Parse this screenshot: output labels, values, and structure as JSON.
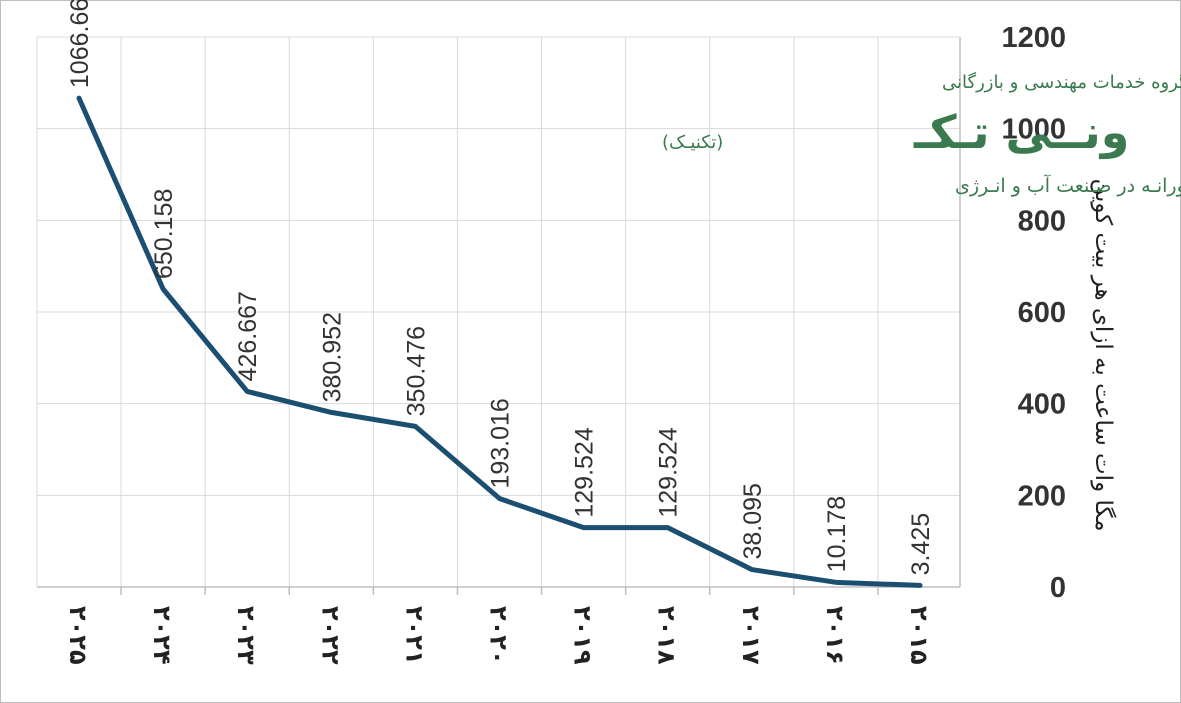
{
  "chart_data": {
    "type": "line",
    "categories": [
      "۲۰۲۵",
      "۲۰۲۴",
      "۲۰۲۳",
      "۲۰۲۲",
      "۲۰۲۱",
      "۲۰۲۰",
      "۲۰۱۹",
      "۲۰۱۸",
      "۲۰۱۷",
      "۲۰۱۶",
      "۲۰۱۵"
    ],
    "values": [
      1066.66,
      650.158,
      426.667,
      380.952,
      350.476,
      193.016,
      129.524,
      129.524,
      38.095,
      10.178,
      3.425
    ],
    "value_labels": [
      "1066.66",
      "650.158",
      "426.667",
      "380.952",
      "350.476",
      "193.016",
      "129.524",
      "129.524",
      "38.095",
      "10.178",
      "3.425"
    ],
    "ylabel": "مگا وات ساعت به ازای هر بیت کوین",
    "ylim": [
      0,
      1200
    ],
    "yticks": [
      "0",
      "200",
      "400",
      "600",
      "800",
      "1000",
      "1200"
    ],
    "ytick_values": [
      0,
      200,
      400,
      600,
      800,
      1000,
      1200
    ],
    "y_axis_side": "right",
    "grid": true,
    "line_color": "#1b4f72"
  },
  "brand": {
    "company": "گروه خدمات مهندسی و بازرگانی",
    "name": "ونــی تـکـ",
    "name_sub": "(تکنیـک)",
    "tagline": "تکنیـک هـای نـوآورانـه در صـنعت آب و انـرژی",
    "color": "#3a7a4e"
  }
}
